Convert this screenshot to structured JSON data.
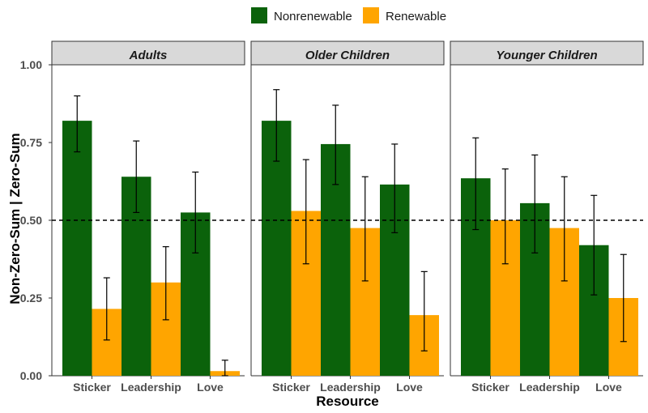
{
  "chart_data": {
    "type": "bar",
    "xlabel": "Resource",
    "ylabel": "Non-Zero-Sum | Zero-Sum",
    "ylim": [
      0,
      1
    ],
    "yticks": [
      "0.00",
      "0.25",
      "0.50",
      "0.75",
      "1.00"
    ],
    "reference_line": 0.5,
    "legend": {
      "position": "top",
      "entries": [
        {
          "name": "Nonrenewable",
          "color": "#0b620b"
        },
        {
          "name": "Renewable",
          "color": "#ffa500"
        }
      ]
    },
    "categories": [
      "Sticker",
      "Leadership",
      "Love"
    ],
    "panels": [
      {
        "title": "Adults",
        "series": [
          {
            "name": "Nonrenewable",
            "values": [
              0.82,
              0.64,
              0.525
            ],
            "err_low": [
              0.72,
              0.525,
              0.395
            ],
            "err_high": [
              0.9,
              0.755,
              0.655
            ]
          },
          {
            "name": "Renewable",
            "values": [
              0.215,
              0.3,
              0.015
            ],
            "err_low": [
              0.115,
              0.18,
              0.0
            ],
            "err_high": [
              0.315,
              0.415,
              0.05
            ]
          }
        ]
      },
      {
        "title": "Older Children",
        "series": [
          {
            "name": "Nonrenewable",
            "values": [
              0.82,
              0.745,
              0.615
            ],
            "err_low": [
              0.69,
              0.615,
              0.46
            ],
            "err_high": [
              0.92,
              0.87,
              0.745
            ]
          },
          {
            "name": "Renewable",
            "values": [
              0.53,
              0.475,
              0.195
            ],
            "err_low": [
              0.36,
              0.305,
              0.08
            ],
            "err_high": [
              0.695,
              0.64,
              0.335
            ]
          }
        ]
      },
      {
        "title": "Younger Children",
        "series": [
          {
            "name": "Nonrenewable",
            "values": [
              0.635,
              0.555,
              0.42
            ],
            "err_low": [
              0.47,
              0.395,
              0.26
            ],
            "err_high": [
              0.765,
              0.71,
              0.58
            ]
          },
          {
            "name": "Renewable",
            "values": [
              0.5,
              0.475,
              0.25
            ],
            "err_low": [
              0.36,
              0.305,
              0.11
            ],
            "err_high": [
              0.665,
              0.64,
              0.39
            ]
          }
        ]
      }
    ]
  }
}
